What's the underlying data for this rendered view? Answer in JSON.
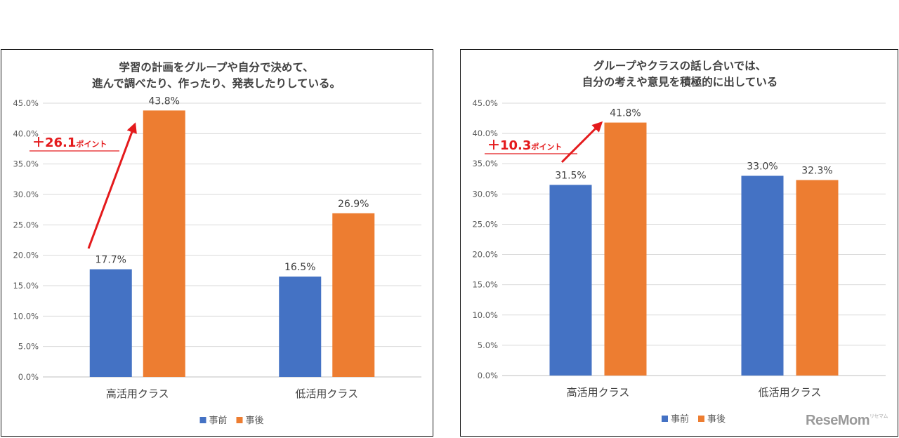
{
  "watermark": "ReseMom",
  "watermark_reading": "リセマム",
  "colors": {
    "before": "#4472C4",
    "after": "#ED7D31",
    "annotation": "#E41A1C",
    "grid": "#D9D9D9",
    "text": "#404040"
  },
  "chart_data": [
    {
      "type": "bar",
      "title_lines": [
        "学習の計画をグループや自分で決めて、",
        "進んで調べたり、作ったり、発表したりしている。"
      ],
      "categories": [
        "高活用クラス",
        "低活用クラス"
      ],
      "series": [
        {
          "name": "事前",
          "values": [
            17.7,
            16.5
          ],
          "labels": [
            "17.7%",
            "16.5%"
          ]
        },
        {
          "name": "事後",
          "values": [
            43.8,
            26.9
          ],
          "labels": [
            "43.8%",
            "26.9%"
          ]
        }
      ],
      "ylim": [
        0,
        45
      ],
      "yticks": [
        "0.0%",
        "5.0%",
        "10.0%",
        "15.0%",
        "20.0%",
        "25.0%",
        "30.0%",
        "35.0%",
        "40.0%",
        "45.0%"
      ],
      "grid": true,
      "legend": "bottom",
      "annotation": {
        "category_index": 0,
        "prefix": "＋",
        "value": "26.1",
        "unit": "ポイント"
      }
    },
    {
      "type": "bar",
      "title_lines": [
        "グループやクラスの話し合いでは、",
        "自分の考えや意見を積極的に出している"
      ],
      "categories": [
        "高活用クラス",
        "低活用クラス"
      ],
      "series": [
        {
          "name": "事前",
          "values": [
            31.5,
            33.0
          ],
          "labels": [
            "31.5%",
            "33.0%"
          ]
        },
        {
          "name": "事後",
          "values": [
            41.8,
            32.3
          ],
          "labels": [
            "41.8%",
            "32.3%"
          ]
        }
      ],
      "ylim": [
        0,
        45
      ],
      "yticks": [
        "0.0%",
        "5.0%",
        "10.0%",
        "15.0%",
        "20.0%",
        "25.0%",
        "30.0%",
        "35.0%",
        "40.0%",
        "45.0%"
      ],
      "grid": true,
      "legend": "bottom",
      "annotation": {
        "category_index": 0,
        "prefix": "＋",
        "value": "10.3",
        "unit": "ポイント"
      }
    }
  ]
}
